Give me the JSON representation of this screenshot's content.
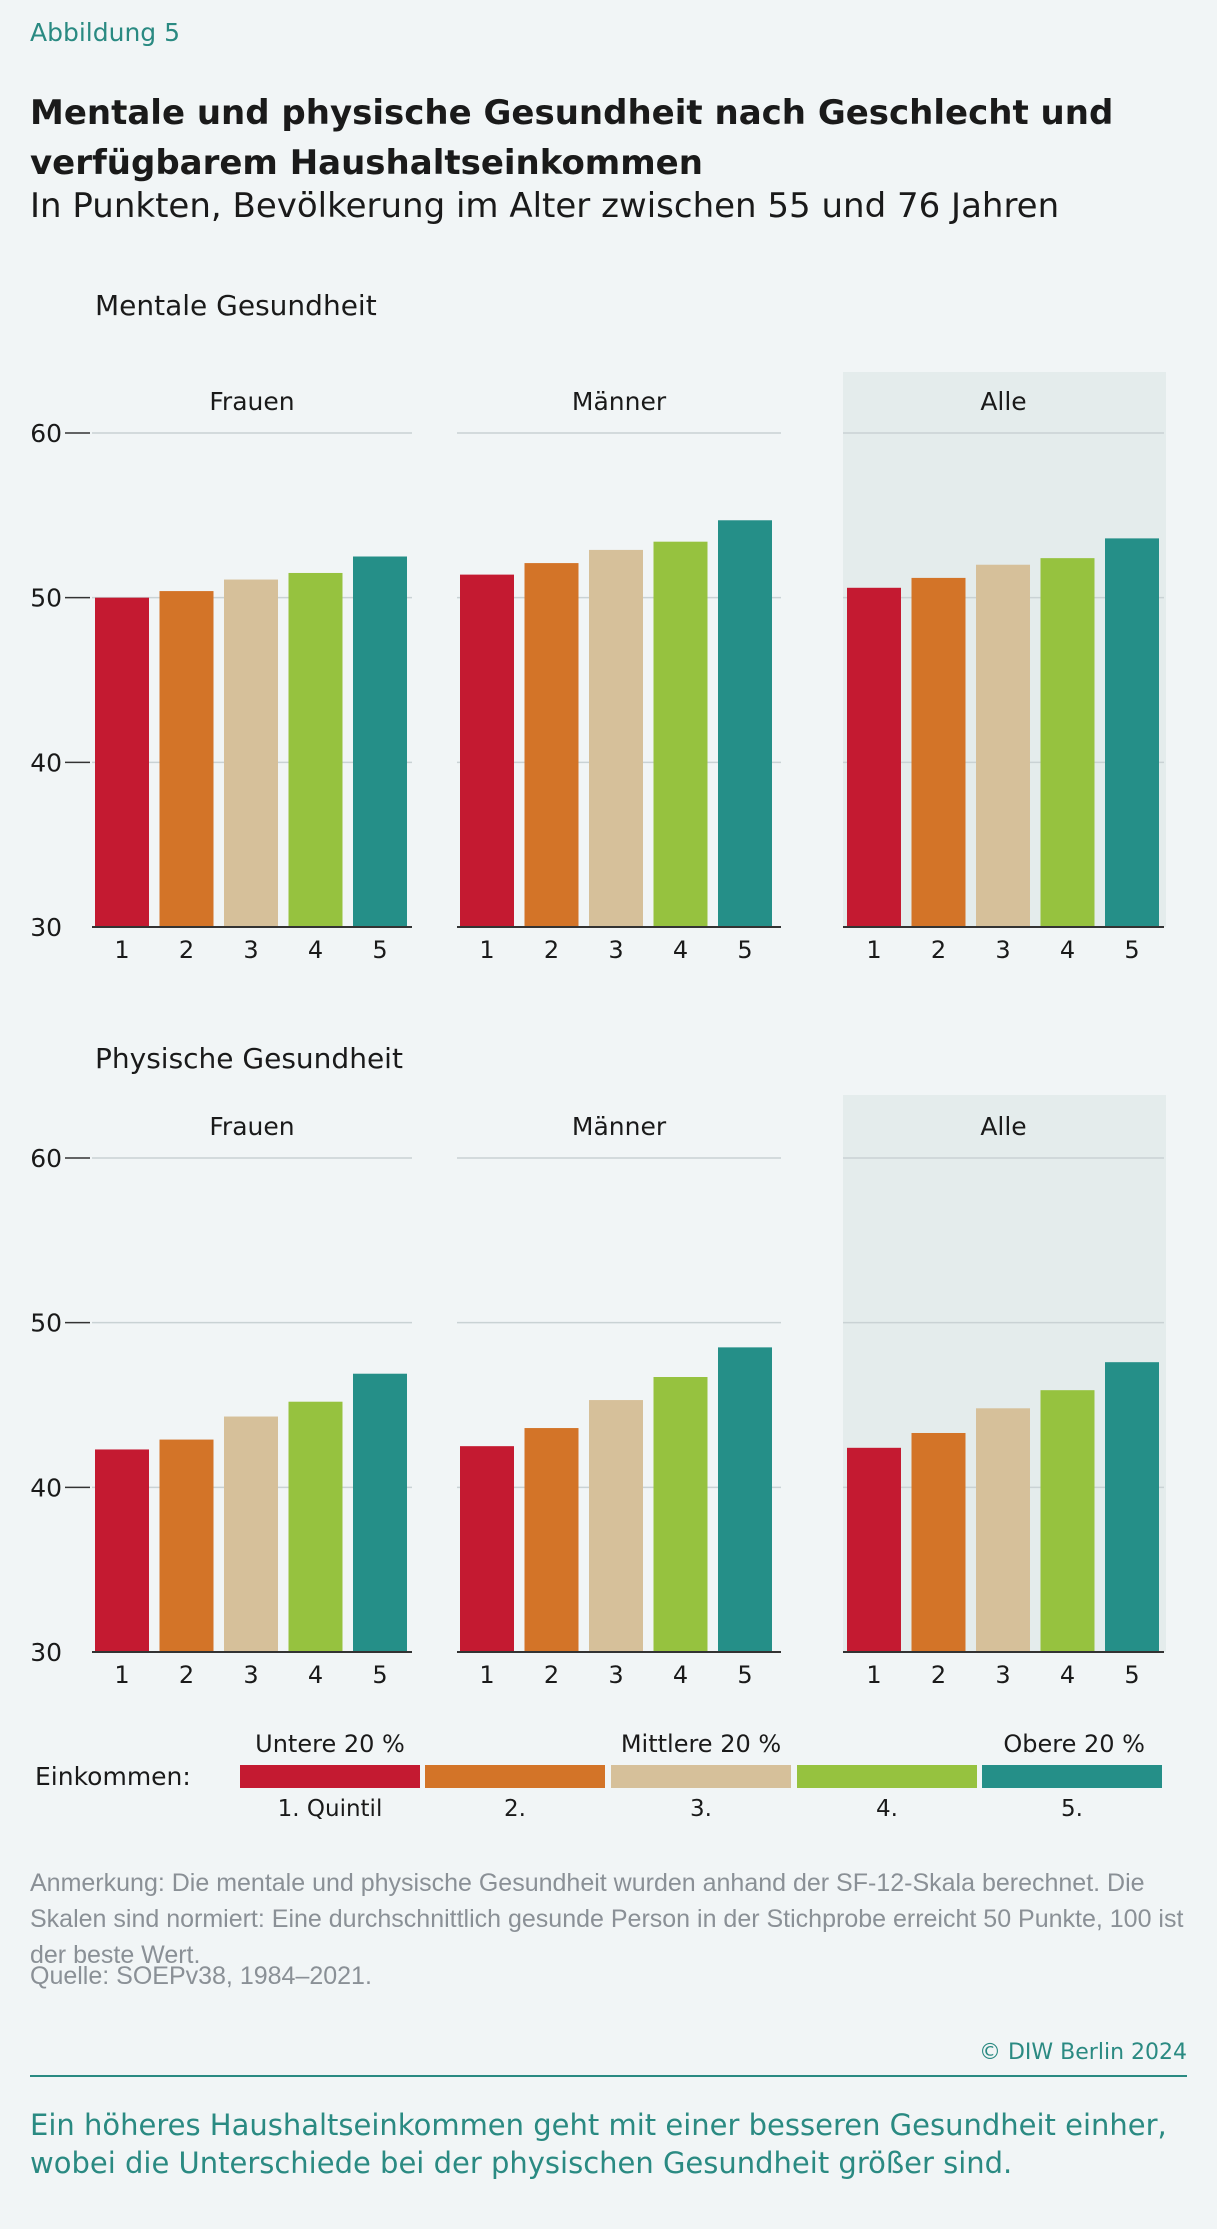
{
  "figure_label": "Abbildung 5",
  "title": "Mentale und physische Gesundheit nach Geschlecht und verfügbarem Haushaltseinkommen",
  "subtitle": "In Punkten, Bevölkerung im Alter zwischen 55 und 76 Jahren",
  "colors": {
    "q1": "#c41a31",
    "q2": "#d37428",
    "q3": "#d6c09a",
    "q4": "#96c23f",
    "q5": "#258f88",
    "highlight_panel": "#e4ecec",
    "accent": "#2a8a82"
  },
  "chart_data": [
    {
      "type": "bar",
      "title": "Mentale Gesundheit",
      "categories": [
        "1",
        "2",
        "3",
        "4",
        "5"
      ],
      "ylim": [
        30,
        60
      ],
      "yticks": [
        30,
        40,
        50,
        60
      ],
      "grid": true,
      "series": [
        {
          "name": "Frauen",
          "values": [
            50.0,
            50.4,
            51.1,
            51.5,
            52.5
          ],
          "highlight": false
        },
        {
          "name": "Männer",
          "values": [
            51.4,
            52.1,
            52.9,
            53.4,
            54.7
          ],
          "highlight": false
        },
        {
          "name": "Alle",
          "values": [
            50.6,
            51.2,
            52.0,
            52.4,
            53.6
          ],
          "highlight": true
        }
      ]
    },
    {
      "type": "bar",
      "title": "Physische Gesundheit",
      "categories": [
        "1",
        "2",
        "3",
        "4",
        "5"
      ],
      "ylim": [
        30,
        60
      ],
      "yticks": [
        30,
        40,
        50,
        60
      ],
      "grid": true,
      "series": [
        {
          "name": "Frauen",
          "values": [
            42.3,
            42.9,
            44.3,
            45.2,
            46.9
          ],
          "highlight": false
        },
        {
          "name": "Männer",
          "values": [
            42.5,
            43.6,
            45.3,
            46.7,
            48.5
          ],
          "highlight": false
        },
        {
          "name": "Alle",
          "values": [
            42.4,
            43.3,
            44.8,
            45.9,
            47.6
          ],
          "highlight": true
        }
      ]
    }
  ],
  "legend": {
    "label": "Einkommen:",
    "top_labels": [
      "Untere 20 %",
      "Mittlere 20 %",
      "Obere 20 %"
    ],
    "bottom_labels": [
      "1. Quintil",
      "2.",
      "3.",
      "4.",
      "5."
    ]
  },
  "note": "Anmerkung: Die mentale und physische Gesundheit wurden anhand der SF-12-Skala berechnet. Die Skalen sind normiert: Eine durchschnittlich gesunde Person in der Stichprobe erreicht 50 Punkte, 100 ist der beste Wert.",
  "source": "Quelle: SOEPv38, 1984–2021.",
  "copyright": "© DIW Berlin 2024",
  "conclusion": "Ein höheres Haushaltseinkommen geht mit einer besseren Gesundheit einher, wobei die Unterschiede bei der physischen Gesundheit größer sind."
}
